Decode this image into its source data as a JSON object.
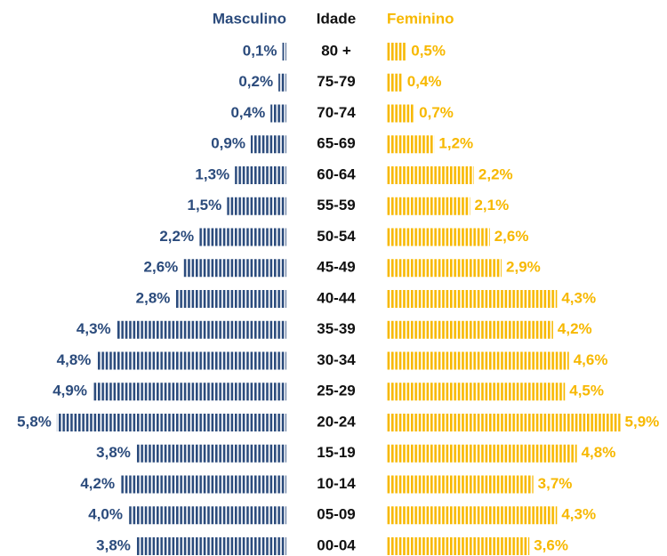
{
  "chart_data": {
    "type": "bar",
    "category_label": "Idade",
    "categories": [
      "80 +",
      "75-79",
      "70-74",
      "65-69",
      "60-64",
      "55-59",
      "50-54",
      "45-49",
      "40-44",
      "35-39",
      "30-34",
      "25-29",
      "20-24",
      "15-19",
      "10-14",
      "05-09",
      "00-04"
    ],
    "series": [
      {
        "name": "Masculino",
        "color": "#2b4b7c",
        "values": [
          0.1,
          0.2,
          0.4,
          0.9,
          1.3,
          1.5,
          2.2,
          2.6,
          2.8,
          4.3,
          4.8,
          4.9,
          5.8,
          3.8,
          4.2,
          4.0,
          3.8
        ],
        "value_labels": [
          "0,1%",
          "0,2%",
          "0,4%",
          "0,9%",
          "1,3%",
          "1,5%",
          "2,2%",
          "2,6%",
          "2,8%",
          "4,3%",
          "4,8%",
          "4,9%",
          "5,8%",
          "3,8%",
          "4,2%",
          "4,0%",
          "3,8%"
        ]
      },
      {
        "name": "Feminino",
        "color": "#f7b800",
        "values": [
          0.5,
          0.4,
          0.7,
          1.2,
          2.2,
          2.1,
          2.6,
          2.9,
          4.3,
          4.2,
          4.6,
          4.5,
          5.9,
          4.8,
          3.7,
          4.3,
          3.6
        ],
        "value_labels": [
          "0,5%",
          "0,4%",
          "0,7%",
          "1,2%",
          "2,2%",
          "2,1%",
          "2,6%",
          "2,9%",
          "4,3%",
          "4,2%",
          "4,6%",
          "4,5%",
          "5,9%",
          "4,8%",
          "3,7%",
          "4,3%",
          "3,6%"
        ]
      }
    ]
  }
}
